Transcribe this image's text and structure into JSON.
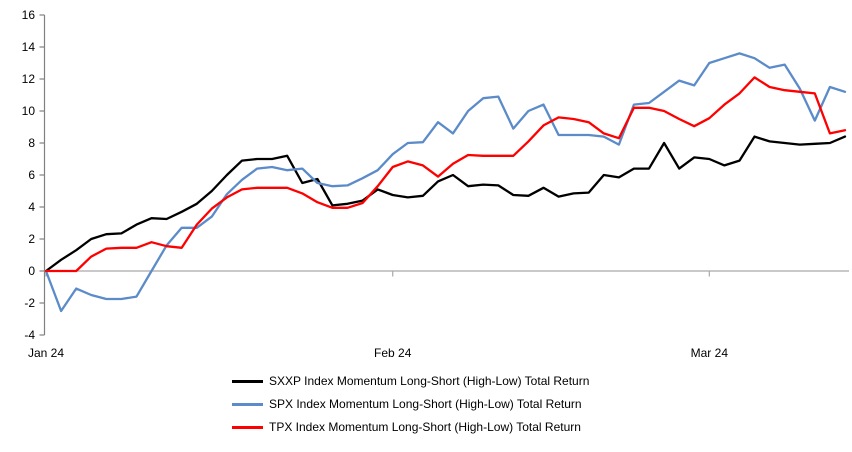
{
  "chart_data": {
    "type": "line",
    "title": "",
    "grid": "zero-line-only",
    "legend_position": "bottom",
    "colors": {
      "axis": "#808080",
      "zero_line": "#a9a9a9",
      "sxxp": "#000000",
      "spx": "#5b8bc9",
      "tpx": "#fe0000"
    },
    "y_axis": {
      "min": -4,
      "max": 16,
      "step": 2,
      "tick_labels": [
        "16",
        "14",
        "12",
        "10",
        "8",
        "6",
        "4",
        "2",
        "0",
        "-2",
        "-4"
      ]
    },
    "x_axis": {
      "ticks": [
        {
          "label": "Jan 24",
          "index": 0
        },
        {
          "label": "Feb 24",
          "index": 23
        },
        {
          "label": "Mar 24",
          "index": 44
        }
      ]
    },
    "series": [
      {
        "id": "sxxp",
        "name": "SXXP Index Momentum Long-Short (High-Low) Total Return",
        "color": "#000000",
        "values": [
          0,
          0.7,
          1.3,
          2.0,
          2.3,
          2.35,
          2.9,
          3.3,
          3.25,
          3.7,
          4.2,
          5.0,
          6.0,
          6.9,
          7.0,
          7.0,
          7.2,
          5.5,
          5.75,
          4.1,
          4.2,
          4.4,
          5.1,
          4.75,
          4.6,
          4.7,
          5.6,
          6.0,
          5.3,
          5.4,
          5.35,
          4.75,
          4.7,
          5.2,
          4.65,
          4.85,
          4.9,
          6.0,
          5.85,
          6.4,
          6.4,
          8.0,
          6.4,
          7.1,
          7.0,
          6.6,
          6.9,
          8.4,
          8.1,
          8.0,
          7.9,
          7.95,
          8.0,
          8.4
        ]
      },
      {
        "id": "spx",
        "name": "SPX Index Momentum Long-Short (High-Low) Total Return",
        "color": "#5b8bc9",
        "values": [
          0,
          -2.5,
          -1.1,
          -1.5,
          -1.75,
          -1.75,
          -1.6,
          0.0,
          1.6,
          2.7,
          2.7,
          3.4,
          4.8,
          5.7,
          6.4,
          6.5,
          6.3,
          6.4,
          5.5,
          5.3,
          5.35,
          5.8,
          6.3,
          7.3,
          8.0,
          8.05,
          9.3,
          8.6,
          10.0,
          10.8,
          10.9,
          8.9,
          10.0,
          10.4,
          8.5,
          8.5,
          8.5,
          8.4,
          7.9,
          10.4,
          10.5,
          11.2,
          11.9,
          11.6,
          13.0,
          13.3,
          13.6,
          13.3,
          12.7,
          12.9,
          11.4,
          9.4,
          11.5,
          11.2
        ]
      },
      {
        "id": "tpx",
        "name": "TPX Index Momentum Long-Short (High-Low) Total Return",
        "color": "#fe0000",
        "values": [
          0,
          0,
          0,
          0.9,
          1.4,
          1.45,
          1.45,
          1.8,
          1.55,
          1.45,
          2.9,
          3.9,
          4.6,
          5.1,
          5.2,
          5.2,
          5.2,
          4.85,
          4.3,
          3.95,
          3.95,
          4.25,
          5.3,
          6.5,
          6.85,
          6.6,
          5.9,
          6.7,
          7.25,
          7.2,
          7.2,
          7.2,
          8.1,
          9.1,
          9.6,
          9.5,
          9.3,
          8.6,
          8.3,
          10.2,
          10.2,
          10.0,
          9.5,
          9.05,
          9.55,
          10.4,
          11.1,
          12.1,
          11.5,
          11.3,
          11.2,
          11.1,
          8.6,
          8.8
        ]
      }
    ]
  }
}
